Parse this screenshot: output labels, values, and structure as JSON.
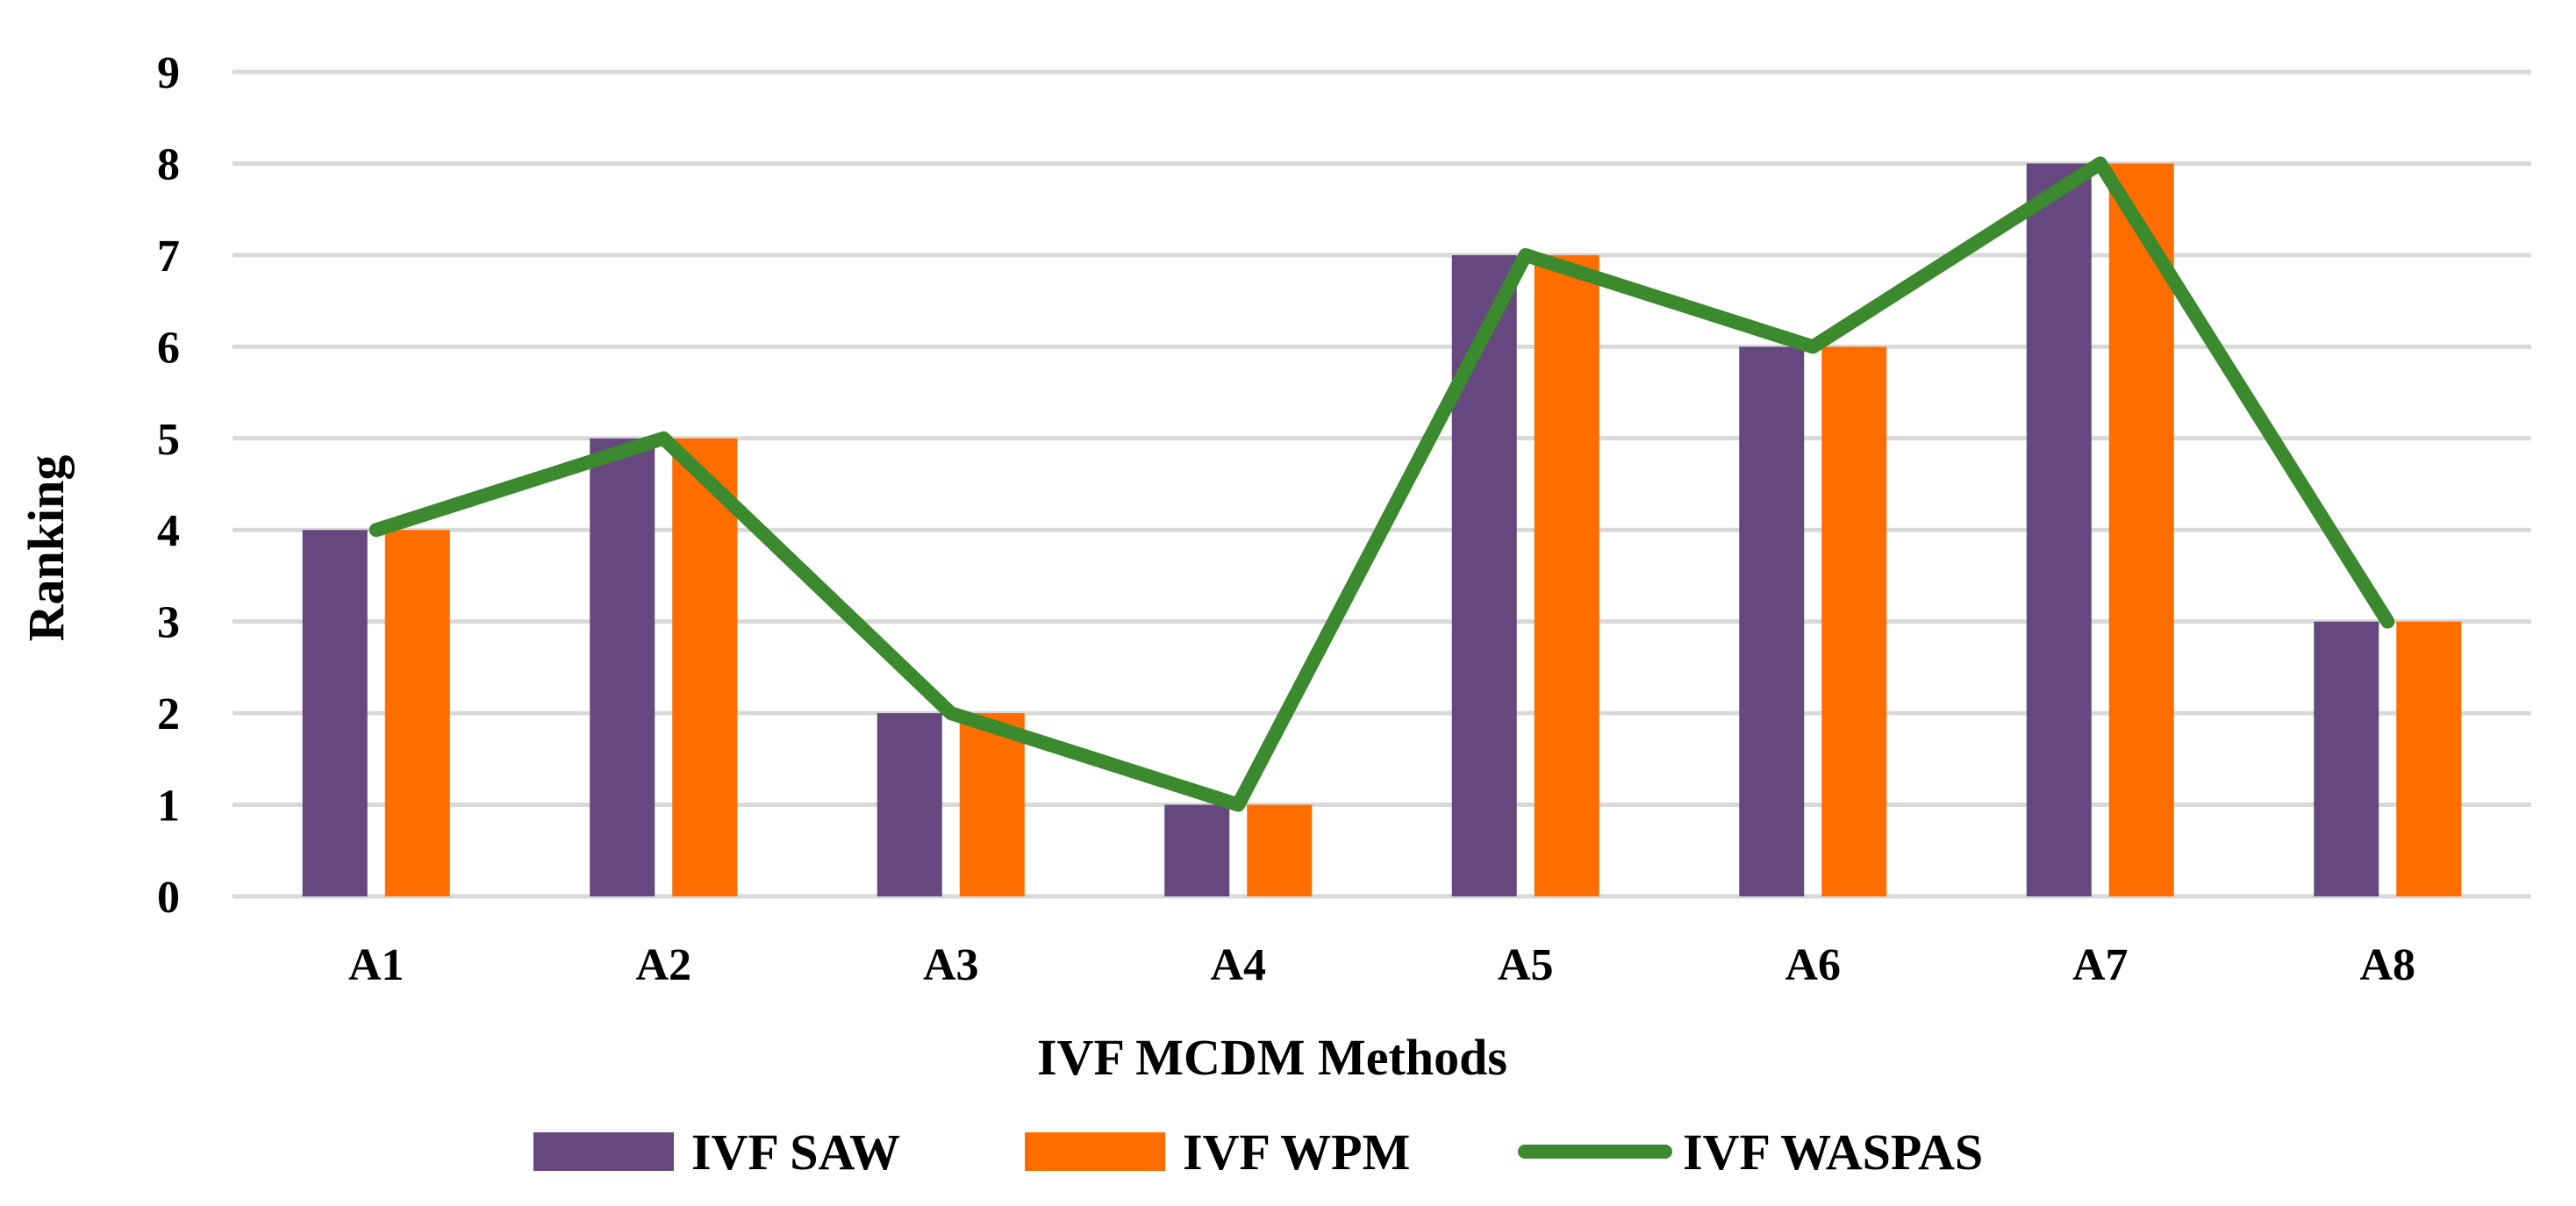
{
  "chart_data": {
    "type": "bar",
    "title": "",
    "xlabel": "IVF MCDM Methods",
    "ylabel": "Ranking",
    "categories": [
      "A1",
      "A2",
      "A3",
      "A4",
      "A5",
      "A6",
      "A7",
      "A8"
    ],
    "ylim": [
      0,
      9
    ],
    "yticks": [
      "0",
      "1",
      "2",
      "3",
      "4",
      "5",
      "6",
      "7",
      "8",
      "9"
    ],
    "grid": true,
    "legend_position": "bottom",
    "series": [
      {
        "name": "IVF SAW",
        "kind": "bar",
        "color": "#65497E",
        "values": [
          4,
          5,
          2,
          1,
          7,
          6,
          8,
          3
        ]
      },
      {
        "name": "IVF WPM",
        "kind": "bar",
        "color": "#FF6D00",
        "values": [
          4,
          5,
          2,
          1,
          7,
          6,
          8,
          3
        ]
      },
      {
        "name": "IVF WASPAS",
        "kind": "line",
        "color": "#3B8A2E",
        "values": [
          4,
          5,
          2,
          1,
          7,
          6,
          8,
          3
        ]
      }
    ]
  }
}
